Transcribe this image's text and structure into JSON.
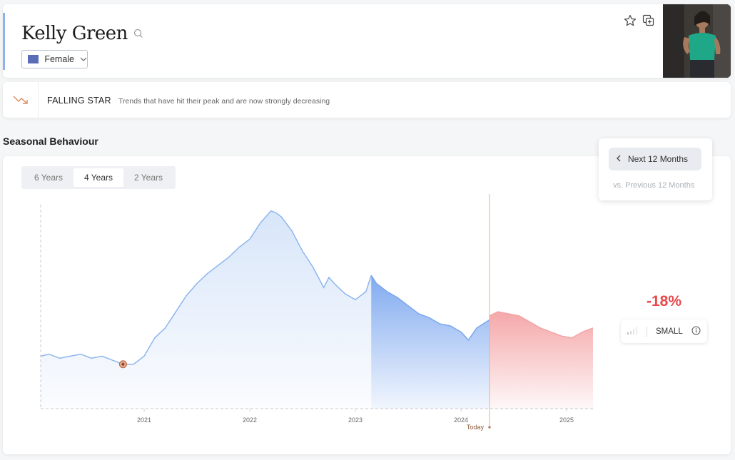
{
  "header": {
    "title": "Kelly Green",
    "gender_label": "Female",
    "gender_swatch": "#5a6eb8"
  },
  "trend": {
    "title": "FALLING STAR",
    "description": "Trends that have hit their peak and are now strongly decreasing",
    "icon": "falling-trend-icon"
  },
  "seasonal": {
    "title": "Seasonal Behaviour",
    "ranges": [
      "6 Years",
      "4 Years",
      "2 Years"
    ],
    "active_range": "4 Years"
  },
  "period": {
    "next_label": "Next 12 Months",
    "prev_label": "vs. Previous 12 Months"
  },
  "forecast": {
    "change": "-18%",
    "size_label": "SMALL"
  },
  "colors": {
    "history": "#8fb6ee",
    "recent": "#7aa6ef",
    "forecast": "#f4a3a5",
    "change": "#e8474b",
    "today": "#e8b08f"
  },
  "chart_data": {
    "type": "area",
    "x_tick_labels": [
      "2021",
      "2022",
      "2023",
      "2024",
      "2025"
    ],
    "today_label": "Today",
    "x_range": [
      2020.02,
      2025.25
    ],
    "y_range": [
      0,
      100
    ],
    "history": {
      "x": [
        2020.02,
        2020.1,
        2020.2,
        2020.3,
        2020.4,
        2020.5,
        2020.6,
        2020.7,
        2020.8,
        2020.9,
        2020.95,
        2021.0,
        2021.1,
        2021.2,
        2021.3,
        2021.4,
        2021.5,
        2021.6,
        2021.7,
        2021.8,
        2021.9,
        2022.0,
        2022.1,
        2022.2,
        2022.25,
        2022.3,
        2022.4,
        2022.5,
        2022.6,
        2022.7,
        2022.75,
        2022.8,
        2022.9,
        2023.0,
        2023.1,
        2023.15
      ],
      "y": [
        26,
        27,
        25,
        26,
        27,
        25,
        26,
        24,
        22,
        22,
        24,
        26,
        35,
        40,
        48,
        56,
        62,
        67,
        71,
        75,
        80,
        84,
        92,
        98,
        97,
        95,
        88,
        78,
        70,
        60,
        65,
        62,
        57,
        54,
        58,
        66
      ]
    },
    "recent": {
      "x": [
        2023.15,
        2023.2,
        2023.3,
        2023.4,
        2023.5,
        2023.6,
        2023.7,
        2023.8,
        2023.9,
        2024.0,
        2024.07,
        2024.15,
        2024.27
      ],
      "y": [
        66,
        62,
        58,
        55,
        51,
        47,
        45,
        42,
        41,
        38,
        34,
        40,
        44
      ]
    },
    "forecast_series": {
      "x": [
        2024.27,
        2024.35,
        2024.45,
        2024.55,
        2024.65,
        2024.75,
        2024.85,
        2024.95,
        2025.05,
        2025.15,
        2025.25
      ],
      "y": [
        46,
        48,
        47,
        46,
        43,
        40,
        38,
        36,
        35,
        38,
        40
      ]
    },
    "today_x": 2024.27
  }
}
